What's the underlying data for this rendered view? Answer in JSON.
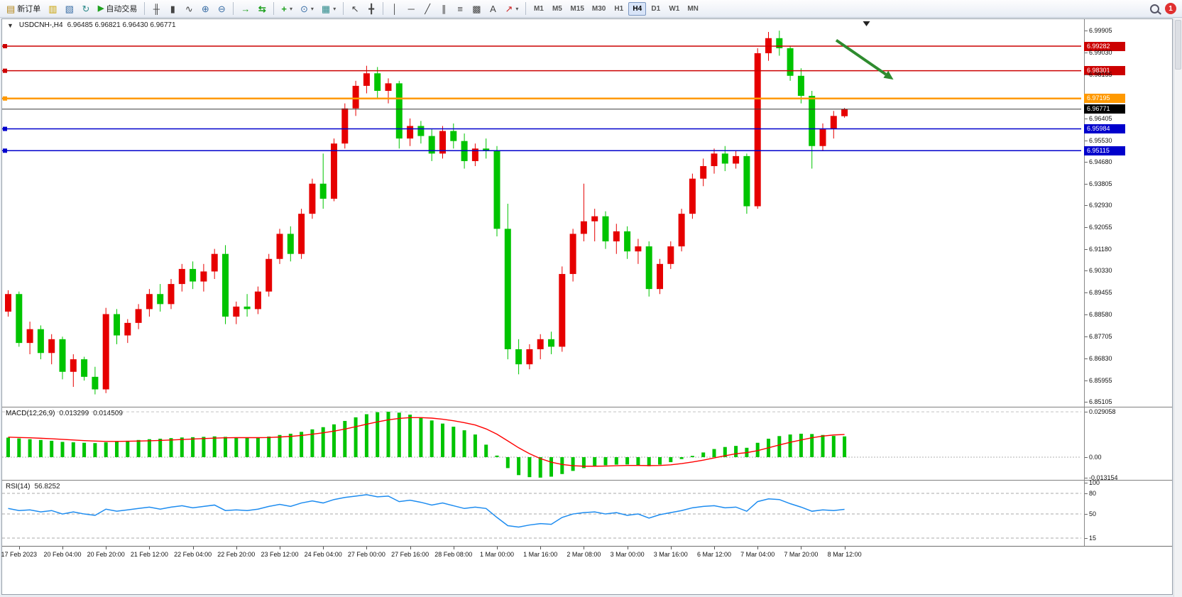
{
  "toolbar": {
    "new_order_label": "新订单",
    "auto_trading_label": "自动交易",
    "timeframes": [
      "M1",
      "M5",
      "M15",
      "M30",
      "H1",
      "H4",
      "D1",
      "W1",
      "MN"
    ],
    "active_timeframe": "H4",
    "notification_count": "1"
  },
  "icons": {
    "new_order": "▤",
    "new_chart": "▥",
    "profiles": "▧",
    "refresh": "↻",
    "play": "▶",
    "bar_chart": "╫",
    "candlestick": "▮",
    "line_chart": "∿",
    "zoom_in": "⊕",
    "zoom_out": "⊖",
    "auto_scroll": "→",
    "chart_shift": "⇆",
    "indicators": "+",
    "periods": "⊙",
    "templates": "▦",
    "cursor": "↖",
    "crosshair": "╋",
    "vline": "│",
    "hline": "─",
    "trendline": "╱",
    "channel": "∥",
    "fibonacci": "≡",
    "shapes": "▩",
    "text": "A",
    "arrows": "↗",
    "caret": "▾",
    "collapse": "▼"
  },
  "chart_data": {
    "type": "candlestick",
    "symbol": "USDCNH-",
    "timeframe": "H4",
    "title": "USDCNH-,H4",
    "ohlc_line": "6.96485 6.96821 6.96430 6.96771",
    "price_min": 6.85105,
    "price_max": 6.99905,
    "up_color": "#e60000",
    "down_color": "#00c400",
    "price_axis_ticks": [
      "6.99905",
      "6.99030",
      "6.98155",
      "6.96405",
      "6.95530",
      "6.94680",
      "6.93805",
      "6.92930",
      "6.92055",
      "6.91180",
      "6.90330",
      "6.89455",
      "6.88580",
      "6.87705",
      "6.86830",
      "6.85955",
      "6.85105"
    ],
    "time_labels": [
      "17 Feb 2023",
      "20 Feb 04:00",
      "20 Feb 20:00",
      "21 Feb 12:00",
      "22 Feb 04:00",
      "22 Feb 20:00",
      "23 Feb 12:00",
      "24 Feb 04:00",
      "27 Feb 00:00",
      "27 Feb 16:00",
      "28 Feb 08:00",
      "1 Mar 00:00",
      "1 Mar 16:00",
      "2 Mar 08:00",
      "3 Mar 00:00",
      "3 Mar 16:00",
      "6 Mar 12:00",
      "7 Mar 04:00",
      "7 Mar 20:00",
      "8 Mar 12:00"
    ],
    "candles": [
      [
        6.887,
        6.8955,
        6.885,
        6.894
      ],
      [
        6.894,
        6.895,
        6.873,
        6.8745
      ],
      [
        6.8745,
        6.883,
        6.87,
        6.88
      ],
      [
        6.88,
        6.8815,
        6.868,
        6.8705
      ],
      [
        6.8705,
        6.878,
        6.866,
        6.876
      ],
      [
        6.876,
        6.877,
        6.86,
        6.863
      ],
      [
        6.863,
        6.87,
        6.857,
        6.868
      ],
      [
        6.868,
        6.869,
        6.8595,
        6.861
      ],
      [
        6.861,
        6.865,
        6.854,
        6.856
      ],
      [
        6.856,
        6.8885,
        6.8545,
        6.886
      ],
      [
        6.886,
        6.888,
        6.874,
        6.8775
      ],
      [
        6.8775,
        6.884,
        6.8745,
        6.8825
      ],
      [
        6.8825,
        6.89,
        6.88,
        6.888
      ],
      [
        6.888,
        6.896,
        6.885,
        6.894
      ],
      [
        6.894,
        6.898,
        6.887,
        6.89
      ],
      [
        6.89,
        6.9,
        6.888,
        6.898
      ],
      [
        6.898,
        6.906,
        6.895,
        6.904
      ],
      [
        6.904,
        6.907,
        6.896,
        6.899
      ],
      [
        6.899,
        6.906,
        6.895,
        6.903
      ],
      [
        6.903,
        6.912,
        6.9,
        6.91
      ],
      [
        6.91,
        6.9135,
        6.882,
        6.885
      ],
      [
        6.885,
        6.891,
        6.882,
        6.889
      ],
      [
        6.889,
        6.894,
        6.885,
        6.888
      ],
      [
        6.888,
        6.897,
        6.886,
        6.895
      ],
      [
        6.895,
        6.91,
        6.893,
        6.908
      ],
      [
        6.908,
        6.92,
        6.906,
        6.918
      ],
      [
        6.918,
        6.921,
        6.907,
        6.91
      ],
      [
        6.91,
        6.928,
        6.908,
        6.926
      ],
      [
        6.926,
        6.94,
        6.924,
        6.938
      ],
      [
        6.938,
        6.95,
        6.928,
        6.932
      ],
      [
        6.932,
        6.956,
        6.931,
        6.954
      ],
      [
        6.954,
        6.97,
        6.952,
        6.968
      ],
      [
        6.968,
        6.979,
        6.965,
        6.977
      ],
      [
        6.977,
        6.985,
        6.974,
        6.982
      ],
      [
        6.982,
        6.9845,
        6.972,
        6.975
      ],
      [
        6.975,
        6.98,
        6.97,
        6.978
      ],
      [
        6.978,
        6.979,
        6.952,
        6.956
      ],
      [
        6.956,
        6.964,
        6.953,
        6.961
      ],
      [
        6.961,
        6.963,
        6.954,
        6.957
      ],
      [
        6.957,
        6.96,
        6.947,
        6.95
      ],
      [
        6.95,
        6.961,
        6.948,
        6.959
      ],
      [
        6.959,
        6.962,
        6.952,
        6.955
      ],
      [
        6.955,
        6.958,
        6.944,
        6.947
      ],
      [
        6.947,
        6.954,
        6.945,
        6.952
      ],
      [
        6.952,
        6.956,
        6.948,
        6.951
      ],
      [
        6.951,
        6.953,
        6.917,
        6.92
      ],
      [
        6.92,
        6.93,
        6.868,
        6.872
      ],
      [
        6.872,
        6.876,
        6.862,
        6.866
      ],
      [
        6.866,
        6.874,
        6.864,
        6.872
      ],
      [
        6.872,
        6.878,
        6.868,
        6.876
      ],
      [
        6.876,
        6.879,
        6.87,
        6.873
      ],
      [
        6.873,
        6.905,
        6.871,
        6.902
      ],
      [
        6.902,
        6.92,
        6.899,
        6.918
      ],
      [
        6.918,
        6.938,
        6.915,
        6.923
      ],
      [
        6.923,
        6.928,
        6.915,
        6.925
      ],
      [
        6.925,
        6.927,
        6.912,
        6.915
      ],
      [
        6.915,
        6.922,
        6.91,
        6.919
      ],
      [
        6.919,
        6.921,
        6.908,
        6.911
      ],
      [
        6.911,
        6.916,
        6.906,
        6.913
      ],
      [
        6.913,
        6.915,
        6.893,
        6.896
      ],
      [
        6.896,
        6.908,
        6.894,
        6.906
      ],
      [
        6.906,
        6.915,
        6.904,
        6.913
      ],
      [
        6.913,
        6.928,
        6.911,
        6.926
      ],
      [
        6.926,
        6.942,
        6.924,
        6.94
      ],
      [
        6.94,
        6.948,
        6.937,
        6.945
      ],
      [
        6.945,
        6.952,
        6.942,
        6.95
      ],
      [
        6.95,
        6.953,
        6.943,
        6.946
      ],
      [
        6.946,
        6.951,
        6.944,
        6.949
      ],
      [
        6.949,
        6.95,
        6.926,
        6.929
      ],
      [
        6.929,
        6.992,
        6.928,
        6.99
      ],
      [
        6.99,
        6.9985,
        6.987,
        6.996
      ],
      [
        6.996,
        6.999,
        6.989,
        6.992
      ],
      [
        6.992,
        6.993,
        6.979,
        6.981
      ],
      [
        6.981,
        6.984,
        6.97,
        6.973
      ],
      [
        6.973,
        6.975,
        6.944,
        6.953
      ],
      [
        6.953,
        6.962,
        6.951,
        6.96
      ],
      [
        6.96,
        6.967,
        6.956,
        6.965
      ],
      [
        6.9649,
        6.9682,
        6.9643,
        6.9677
      ]
    ],
    "hlines": [
      {
        "price": 6.99282,
        "label": "6.99282",
        "color": "#cc0000",
        "width": 1.5,
        "handle": true
      },
      {
        "price": 6.98301,
        "label": "6.98301",
        "color": "#cc0000",
        "width": 1.5,
        "handle": true
      },
      {
        "price": 6.97195,
        "label": "6.97195",
        "color": "#ff9900",
        "width": 2.5,
        "handle": true
      },
      {
        "price": 6.96771,
        "label": "6.96771",
        "color": "#3c3c3c",
        "width": 1,
        "handle": false,
        "bid": true
      },
      {
        "price": 6.95984,
        "label": "6.95984",
        "color": "#0000cc",
        "width": 1.5,
        "handle": true
      },
      {
        "price": 6.95115,
        "label": "6.95115",
        "color": "#0000cc",
        "width": 1.5,
        "handle": true
      }
    ],
    "arrow": {
      "x1_frac": 0.773,
      "price1": 6.9952,
      "x2_frac": 0.826,
      "price2": 6.9795,
      "color": "#2e8b2e"
    },
    "shift_marker_frac": 0.801,
    "macd": {
      "name": "MACD(12,26,9)",
      "value1": "0.013299",
      "value2": "0.014509",
      "axis": [
        "0.029058",
        "0.00",
        "-0.013154"
      ],
      "axis_values": [
        0.029058,
        0.0,
        -0.013154
      ],
      "main": [
        0.0125,
        0.012,
        0.0115,
        0.011,
        0.0105,
        0.0098,
        0.0095,
        0.0092,
        0.009,
        0.0095,
        0.01,
        0.0105,
        0.011,
        0.0115,
        0.0118,
        0.0122,
        0.0126,
        0.0128,
        0.013,
        0.0133,
        0.013,
        0.0126,
        0.0123,
        0.0125,
        0.0132,
        0.0142,
        0.015,
        0.0162,
        0.0178,
        0.0192,
        0.021,
        0.0232,
        0.0255,
        0.0275,
        0.0288,
        0.0291,
        0.0285,
        0.0272,
        0.0255,
        0.0235,
        0.0215,
        0.0195,
        0.0172,
        0.0145,
        0.008,
        0.001,
        -0.007,
        -0.0115,
        -0.0128,
        -0.0131,
        -0.0125,
        -0.0108,
        -0.0088,
        -0.007,
        -0.0058,
        -0.0052,
        -0.0048,
        -0.0047,
        -0.005,
        -0.0058,
        -0.0048,
        -0.0032,
        -0.0012,
        0.0008,
        0.003,
        0.0052,
        0.0065,
        0.0072,
        0.006,
        0.0092,
        0.0118,
        0.0135,
        0.0145,
        0.015,
        0.0148,
        0.0142,
        0.0136,
        0.0133
      ],
      "signal": [
        0.0128,
        0.0126,
        0.0124,
        0.0121,
        0.0118,
        0.0114,
        0.011,
        0.0106,
        0.0103,
        0.0101,
        0.0101,
        0.0102,
        0.0103,
        0.0105,
        0.0107,
        0.011,
        0.0113,
        0.0116,
        0.0119,
        0.0122,
        0.0124,
        0.0125,
        0.0125,
        0.0125,
        0.0126,
        0.0129,
        0.0133,
        0.0139,
        0.0147,
        0.0156,
        0.0167,
        0.018,
        0.0195,
        0.0211,
        0.0226,
        0.0239,
        0.0248,
        0.0253,
        0.0253,
        0.025,
        0.0243,
        0.0233,
        0.0221,
        0.0206,
        0.0181,
        0.0147,
        0.0104,
        0.006,
        0.0022,
        -0.0009,
        -0.0032,
        -0.0047,
        -0.0055,
        -0.0058,
        -0.0058,
        -0.0057,
        -0.0055,
        -0.0053,
        -0.0053,
        -0.0054,
        -0.0053,
        -0.0049,
        -0.0041,
        -0.0031,
        -0.0019,
        -0.0005,
        0.0009,
        0.0022,
        0.0029,
        0.0042,
        0.006,
        0.0078,
        0.0095,
        0.011,
        0.0124,
        0.0135,
        0.0142,
        0.0145
      ],
      "signal_color": "#ff0000"
    },
    "rsi": {
      "name": "RSI(14)",
      "value": "56.8252",
      "levels": [
        "100",
        "80",
        "50",
        "15"
      ],
      "level_values": [
        100,
        80,
        50,
        15
      ],
      "line_color": "#1d8cf0",
      "series": [
        58,
        55,
        56,
        53,
        55,
        50,
        53,
        50,
        48,
        57,
        54,
        56,
        58,
        60,
        57,
        60,
        62,
        59,
        61,
        63,
        55,
        56,
        55,
        57,
        61,
        64,
        61,
        66,
        69,
        66,
        71,
        74,
        76,
        78,
        75,
        76,
        68,
        70,
        67,
        63,
        66,
        62,
        58,
        60,
        58,
        45,
        33,
        31,
        34,
        36,
        35,
        45,
        50,
        52,
        53,
        50,
        52,
        48,
        50,
        44,
        49,
        52,
        55,
        59,
        61,
        62,
        59,
        60,
        54,
        68,
        72,
        71,
        65,
        60,
        54,
        56,
        55,
        56.8
      ]
    }
  }
}
